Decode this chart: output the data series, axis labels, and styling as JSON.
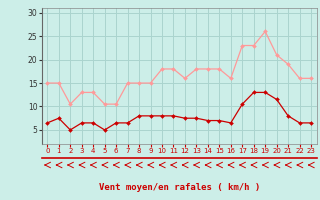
{
  "x": [
    0,
    1,
    2,
    3,
    4,
    5,
    6,
    7,
    8,
    9,
    10,
    11,
    12,
    13,
    14,
    15,
    16,
    17,
    18,
    19,
    20,
    21,
    22,
    23
  ],
  "rafales": [
    15,
    15,
    10.5,
    13,
    13,
    10.5,
    10.5,
    15,
    15,
    15,
    18,
    18,
    16,
    18,
    18,
    18,
    16,
    23,
    23,
    26,
    21,
    19,
    16,
    16
  ],
  "moyen": [
    6.5,
    7.5,
    5,
    6.5,
    6.5,
    5,
    6.5,
    6.5,
    8,
    8,
    8,
    8,
    7.5,
    7.5,
    7,
    7,
    6.5,
    10.5,
    13,
    13,
    11.5,
    8,
    6.5,
    6.5
  ],
  "bg_color": "#cceee8",
  "grid_color": "#aad4ce",
  "rafales_color": "#ff9999",
  "moyen_color": "#cc0000",
  "arrow_color": "#cc0000",
  "xlabel": "Vent moyen/en rafales ( km/h )",
  "xlabel_color": "#cc0000",
  "yticks": [
    5,
    10,
    15,
    20,
    25,
    30
  ],
  "xticks": [
    0,
    1,
    2,
    3,
    4,
    5,
    6,
    7,
    8,
    9,
    10,
    11,
    12,
    13,
    14,
    15,
    16,
    17,
    18,
    19,
    20,
    21,
    22,
    23
  ],
  "ylim": [
    2,
    31
  ],
  "xlim": [
    -0.5,
    23.5
  ]
}
